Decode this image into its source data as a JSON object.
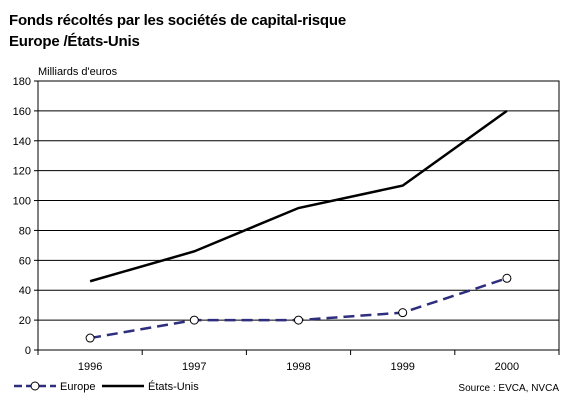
{
  "chart_data": {
    "type": "line",
    "title": "Fonds récoltés par les sociétés de capital-risque",
    "subtitle": "Europe /États-Unis",
    "ylabel": "Milliards d'euros",
    "xlabel": "",
    "categories": [
      "1996",
      "1997",
      "1998",
      "1999",
      "2000"
    ],
    "ylim": [
      0,
      180
    ],
    "yticks": [
      "0",
      "20",
      "40",
      "60",
      "80",
      "100",
      "120",
      "140",
      "160",
      "180"
    ],
    "grid": true,
    "legend_position": "bottom-left",
    "series": [
      {
        "name": "Europe",
        "values": [
          8,
          20,
          20,
          25,
          48
        ],
        "color": "#2e2e7e",
        "style": "dashed",
        "marker": "circle"
      },
      {
        "name": "États-Unis",
        "values": [
          46,
          66,
          95,
          110,
          160
        ],
        "color": "#000000",
        "style": "solid",
        "marker": "none"
      }
    ],
    "source": "Source : EVCA, NVCA"
  }
}
